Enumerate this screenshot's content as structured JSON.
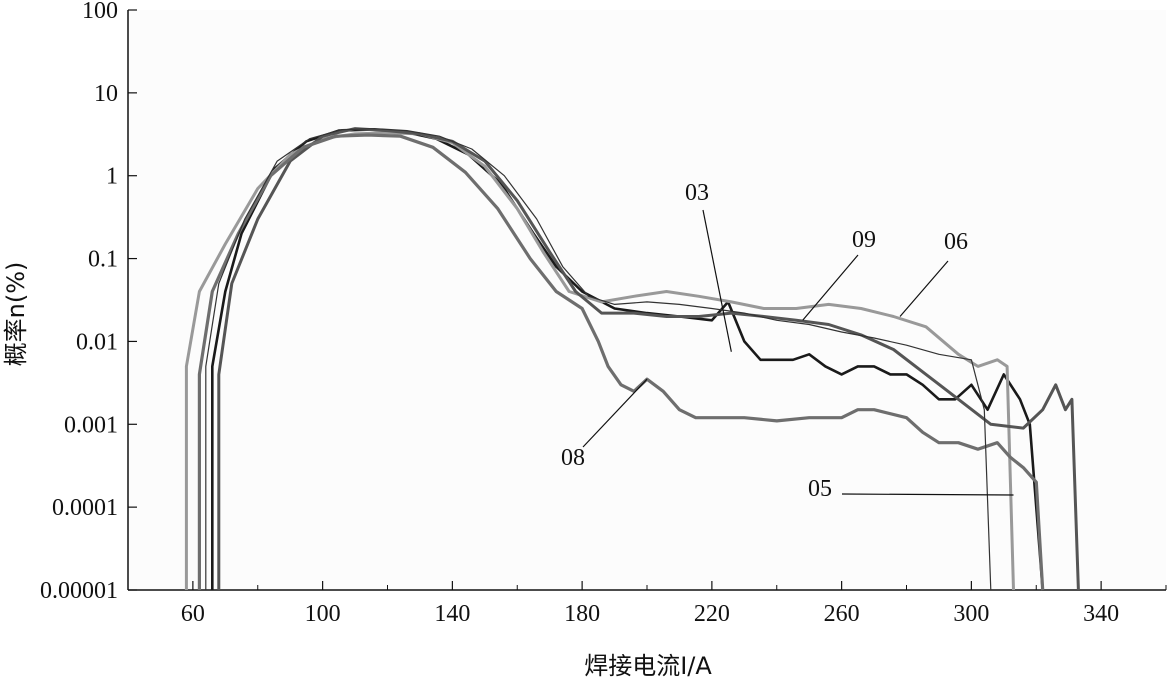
{
  "chart_data": {
    "type": "line",
    "xlabel": "焊接电流I/A",
    "ylabel": "概率n(%)",
    "xlim": [
      40,
      360
    ],
    "ylim": [
      1e-05,
      100
    ],
    "yscale": "log",
    "grid": false,
    "x_ticks": [
      60,
      100,
      140,
      180,
      220,
      260,
      300,
      340
    ],
    "x_tick_labels": [
      "60",
      "100",
      "140",
      "180",
      "220",
      "260",
      "300",
      "340"
    ],
    "y_ticks": [
      1e-05,
      0.0001,
      0.001,
      0.01,
      0.1,
      1,
      10,
      100
    ],
    "y_tick_labels": [
      "0.00001",
      "0.0001",
      "0.001",
      "0.01",
      "0.1",
      "1",
      "10",
      "100"
    ],
    "series": [
      {
        "name": "03",
        "color": "#1a1a1a",
        "points": [
          [
            66,
            1e-05
          ],
          [
            66,
            0.005
          ],
          [
            70,
            0.04
          ],
          [
            75,
            0.2
          ],
          [
            85,
            1.2
          ],
          [
            95,
            2.6
          ],
          [
            105,
            3.5
          ],
          [
            115,
            3.6
          ],
          [
            125,
            3.4
          ],
          [
            135,
            2.8
          ],
          [
            145,
            1.8
          ],
          [
            155,
            0.8
          ],
          [
            165,
            0.2
          ],
          [
            172,
            0.08
          ],
          [
            180,
            0.04
          ],
          [
            190,
            0.025
          ],
          [
            200,
            0.022
          ],
          [
            210,
            0.02
          ],
          [
            220,
            0.018
          ],
          [
            225,
            0.03
          ],
          [
            230,
            0.01
          ],
          [
            235,
            0.006
          ],
          [
            240,
            0.006
          ],
          [
            245,
            0.006
          ],
          [
            250,
            0.007
          ],
          [
            255,
            0.005
          ],
          [
            260,
            0.004
          ],
          [
            265,
            0.005
          ],
          [
            270,
            0.005
          ],
          [
            275,
            0.004
          ],
          [
            280,
            0.004
          ],
          [
            285,
            0.003
          ],
          [
            290,
            0.002
          ],
          [
            295,
            0.002
          ],
          [
            300,
            0.003
          ],
          [
            305,
            0.0015
          ],
          [
            310,
            0.004
          ],
          [
            315,
            0.002
          ],
          [
            318,
            0.001
          ],
          [
            322,
            1e-05
          ]
        ]
      },
      {
        "name": "05",
        "color": "#999999",
        "points": [
          [
            58,
            1e-05
          ],
          [
            58,
            0.005
          ],
          [
            62,
            0.04
          ],
          [
            70,
            0.15
          ],
          [
            80,
            0.7
          ],
          [
            90,
            1.8
          ],
          [
            100,
            2.8
          ],
          [
            110,
            3.2
          ],
          [
            120,
            3.3
          ],
          [
            130,
            3.2
          ],
          [
            140,
            2.5
          ],
          [
            150,
            1.3
          ],
          [
            160,
            0.4
          ],
          [
            168,
            0.12
          ],
          [
            176,
            0.04
          ],
          [
            186,
            0.03
          ],
          [
            196,
            0.035
          ],
          [
            206,
            0.04
          ],
          [
            216,
            0.035
          ],
          [
            226,
            0.03
          ],
          [
            236,
            0.025
          ],
          [
            246,
            0.025
          ],
          [
            256,
            0.028
          ],
          [
            266,
            0.025
          ],
          [
            276,
            0.02
          ],
          [
            286,
            0.015
          ],
          [
            296,
            0.007
          ],
          [
            302,
            0.005
          ],
          [
            308,
            0.006
          ],
          [
            311,
            0.005
          ],
          [
            313,
            1e-05
          ]
        ]
      },
      {
        "name": "06",
        "color": "#555555",
        "points": [
          [
            68,
            1e-05
          ],
          [
            68,
            0.004
          ],
          [
            72,
            0.05
          ],
          [
            80,
            0.3
          ],
          [
            90,
            1.5
          ],
          [
            100,
            3
          ],
          [
            110,
            3.7
          ],
          [
            120,
            3.5
          ],
          [
            130,
            3.2
          ],
          [
            140,
            2.6
          ],
          [
            150,
            1.5
          ],
          [
            160,
            0.5
          ],
          [
            170,
            0.12
          ],
          [
            178,
            0.04
          ],
          [
            186,
            0.022
          ],
          [
            196,
            0.022
          ],
          [
            206,
            0.02
          ],
          [
            216,
            0.02
          ],
          [
            226,
            0.022
          ],
          [
            236,
            0.02
          ],
          [
            246,
            0.018
          ],
          [
            256,
            0.016
          ],
          [
            266,
            0.012
          ],
          [
            276,
            0.008
          ],
          [
            286,
            0.004
          ],
          [
            296,
            0.002
          ],
          [
            306,
            0.001
          ],
          [
            316,
            0.0009
          ],
          [
            322,
            0.0015
          ],
          [
            326,
            0.003
          ],
          [
            329,
            0.0015
          ],
          [
            331,
            0.002
          ],
          [
            333,
            1e-05
          ]
        ]
      },
      {
        "name": "08",
        "color": "#6e6e6e",
        "points": [
          [
            62,
            1e-05
          ],
          [
            62,
            0.004
          ],
          [
            66,
            0.04
          ],
          [
            74,
            0.2
          ],
          [
            84,
            1
          ],
          [
            94,
            2.2
          ],
          [
            104,
            3
          ],
          [
            114,
            3.1
          ],
          [
            124,
            3
          ],
          [
            134,
            2.2
          ],
          [
            144,
            1.1
          ],
          [
            154,
            0.4
          ],
          [
            164,
            0.1
          ],
          [
            172,
            0.04
          ],
          [
            180,
            0.025
          ],
          [
            185,
            0.01
          ],
          [
            188,
            0.005
          ],
          [
            192,
            0.003
          ],
          [
            196,
            0.0025
          ],
          [
            200,
            0.0035
          ],
          [
            205,
            0.0025
          ],
          [
            210,
            0.0015
          ],
          [
            215,
            0.0012
          ],
          [
            220,
            0.0012
          ],
          [
            230,
            0.0012
          ],
          [
            240,
            0.0011
          ],
          [
            250,
            0.0012
          ],
          [
            260,
            0.0012
          ],
          [
            265,
            0.0015
          ],
          [
            270,
            0.0015
          ],
          [
            280,
            0.0012
          ],
          [
            285,
            0.0008
          ],
          [
            290,
            0.0006
          ],
          [
            296,
            0.0006
          ],
          [
            302,
            0.0005
          ],
          [
            308,
            0.0006
          ],
          [
            312,
            0.0004
          ],
          [
            316,
            0.0003
          ],
          [
            320,
            0.0002
          ],
          [
            322,
            1e-05
          ]
        ]
      },
      {
        "name": "09",
        "color": "#333333",
        "points": [
          [
            64,
            1e-05
          ],
          [
            64,
            0.005
          ],
          [
            68,
            0.05
          ],
          [
            76,
            0.3
          ],
          [
            86,
            1.5
          ],
          [
            96,
            2.8
          ],
          [
            106,
            3.6
          ],
          [
            116,
            3.7
          ],
          [
            126,
            3.5
          ],
          [
            136,
            3
          ],
          [
            146,
            2.1
          ],
          [
            156,
            1
          ],
          [
            166,
            0.3
          ],
          [
            174,
            0.08
          ],
          [
            182,
            0.035
          ],
          [
            190,
            0.028
          ],
          [
            200,
            0.03
          ],
          [
            210,
            0.028
          ],
          [
            220,
            0.025
          ],
          [
            230,
            0.022
          ],
          [
            240,
            0.018
          ],
          [
            250,
            0.016
          ],
          [
            260,
            0.013
          ],
          [
            270,
            0.011
          ],
          [
            280,
            0.009
          ],
          [
            290,
            0.007
          ],
          [
            300,
            0.006
          ],
          [
            304,
            0.0015
          ],
          [
            306,
            1e-05
          ]
        ]
      }
    ],
    "annotations": [
      "03",
      "05",
      "06",
      "08",
      "09"
    ]
  }
}
